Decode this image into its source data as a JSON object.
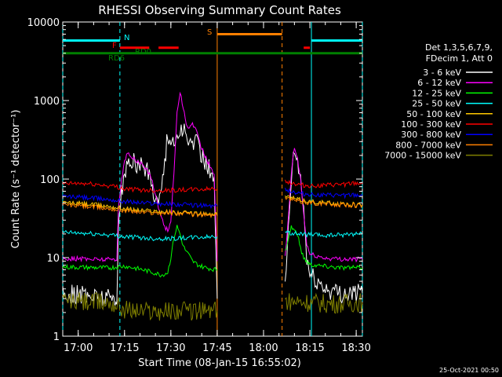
{
  "chart_data": {
    "type": "line",
    "title": "RHESSI Observing Summary Count Rates",
    "xlabel": "Start Time (08-Jan-15 16:55:02)",
    "ylabel": "Count Rate (s⁻¹ detector⁻¹)",
    "y_log": true,
    "ylim": [
      1,
      10000
    ],
    "xlim_minutes": [
      0,
      97
    ],
    "x_ticks": [
      {
        "label": "17:00",
        "min": 5
      },
      {
        "label": "17:15",
        "min": 20
      },
      {
        "label": "17:30",
        "min": 35
      },
      {
        "label": "17:45",
        "min": 50
      },
      {
        "label": "18:00",
        "min": 65
      },
      {
        "label": "18:15",
        "min": 80
      },
      {
        "label": "18:30",
        "min": 95
      }
    ],
    "y_ticks": [
      {
        "label": "1",
        "v": 1
      },
      {
        "label": "10",
        "v": 10
      },
      {
        "label": "100",
        "v": 100
      },
      {
        "label": "1000",
        "v": 1000
      },
      {
        "label": "10000",
        "v": 10000
      }
    ],
    "legend_header": [
      "Det 1,3,5,6,7,9,",
      "FDecim 1, Att 0"
    ],
    "legend_position": "right",
    "timestamp": "25-Oct-2021 00:50",
    "gaps_minutes": [
      [
        50,
        72
      ]
    ],
    "series": [
      {
        "name": "3 - 6 keV",
        "color": "#ffffff",
        "points": [
          [
            0,
            3.5
          ],
          [
            8,
            3.3
          ],
          [
            15,
            3.1
          ],
          [
            17.5,
            3.2
          ],
          [
            18,
            20
          ],
          [
            19,
            70
          ],
          [
            20,
            110
          ],
          [
            21,
            145
          ],
          [
            22,
            175
          ],
          [
            23,
            165
          ],
          [
            24,
            150
          ],
          [
            25,
            155
          ],
          [
            26,
            140
          ],
          [
            27,
            135
          ],
          [
            28,
            110
          ],
          [
            29,
            80
          ],
          [
            30,
            60
          ],
          [
            31,
            50
          ],
          [
            32,
            80
          ],
          [
            33,
            180
          ],
          [
            34,
            350
          ],
          [
            35,
            330
          ],
          [
            36,
            270
          ],
          [
            37,
            330
          ],
          [
            38,
            440
          ],
          [
            39,
            420
          ],
          [
            40,
            320
          ],
          [
            41,
            280
          ],
          [
            42,
            300
          ],
          [
            43,
            310
          ],
          [
            44,
            250
          ],
          [
            45,
            200
          ],
          [
            46,
            170
          ],
          [
            47,
            150
          ],
          [
            48,
            120
          ],
          [
            49,
            90
          ],
          [
            50,
            3
          ]
        ],
        "points2": [
          [
            72,
            4
          ],
          [
            73,
            20
          ],
          [
            74,
            100
          ],
          [
            75,
            220
          ],
          [
            76,
            160
          ],
          [
            77,
            100
          ],
          [
            78,
            40
          ],
          [
            79,
            10
          ],
          [
            80,
            6
          ],
          [
            85,
            4
          ],
          [
            90,
            3.5
          ],
          [
            97,
            3.5
          ]
        ]
      },
      {
        "name": "6 - 12 keV",
        "color": "#ff00ff",
        "points": [
          [
            0,
            9.8
          ],
          [
            8,
            9.6
          ],
          [
            15,
            9.5
          ],
          [
            17.5,
            9.7
          ],
          [
            18,
            40
          ],
          [
            19,
            95
          ],
          [
            20,
            170
          ],
          [
            21,
            210
          ],
          [
            22,
            200
          ],
          [
            23,
            180
          ],
          [
            24,
            170
          ],
          [
            25,
            160
          ],
          [
            26,
            150
          ],
          [
            27,
            135
          ],
          [
            28,
            115
          ],
          [
            29,
            95
          ],
          [
            30,
            65
          ],
          [
            31,
            42
          ],
          [
            32,
            33
          ],
          [
            33,
            25
          ],
          [
            34,
            22
          ],
          [
            35,
            30
          ],
          [
            36,
            120
          ],
          [
            37,
            700
          ],
          [
            38,
            1300
          ],
          [
            39,
            800
          ],
          [
            40,
            480
          ],
          [
            41,
            440
          ],
          [
            42,
            520
          ],
          [
            43,
            430
          ],
          [
            44,
            320
          ],
          [
            45,
            250
          ],
          [
            46,
            200
          ],
          [
            47,
            165
          ],
          [
            48,
            140
          ],
          [
            49,
            110
          ],
          [
            50,
            9
          ]
        ],
        "points2": [
          [
            72,
            10
          ],
          [
            73,
            30
          ],
          [
            74,
            120
          ],
          [
            75,
            250
          ],
          [
            76,
            180
          ],
          [
            77,
            100
          ],
          [
            78,
            35
          ],
          [
            79,
            15
          ],
          [
            80,
            11
          ],
          [
            85,
            9.8
          ],
          [
            90,
            9.6
          ],
          [
            97,
            9.5
          ]
        ]
      },
      {
        "name": "12 - 25 keV",
        "color": "#00ff00",
        "points": [
          [
            0,
            7.6
          ],
          [
            8,
            7.5
          ],
          [
            15,
            7.4
          ],
          [
            17.5,
            7.6
          ],
          [
            18,
            7.6
          ],
          [
            20,
            7.8
          ],
          [
            23,
            7.4
          ],
          [
            26,
            7
          ],
          [
            29,
            6.5
          ],
          [
            32,
            6
          ],
          [
            34,
            6.5
          ],
          [
            35,
            10
          ],
          [
            36,
            18
          ],
          [
            37,
            25
          ],
          [
            38,
            20
          ],
          [
            39,
            14
          ],
          [
            40,
            12
          ],
          [
            41,
            10.5
          ],
          [
            42,
            9
          ],
          [
            44,
            8
          ],
          [
            46,
            7.5
          ],
          [
            48,
            7.2
          ],
          [
            50,
            7
          ]
        ],
        "points2": [
          [
            72,
            12
          ],
          [
            74,
            25
          ],
          [
            76,
            20
          ],
          [
            77,
            13
          ],
          [
            78,
            10
          ],
          [
            80,
            8.2
          ],
          [
            85,
            7.8
          ],
          [
            90,
            7.5
          ],
          [
            97,
            7.4
          ]
        ]
      },
      {
        "name": "25 - 50 keV",
        "color": "#00ffff",
        "points": [
          [
            0,
            21
          ],
          [
            5,
            20.5
          ],
          [
            10,
            20
          ],
          [
            15,
            19.5
          ],
          [
            17.5,
            19
          ],
          [
            20,
            18.5
          ],
          [
            25,
            18
          ],
          [
            30,
            17.5
          ],
          [
            35,
            17.5
          ],
          [
            40,
            17.8
          ],
          [
            45,
            18.2
          ],
          [
            50,
            18.5
          ]
        ],
        "points2": [
          [
            72,
            21
          ],
          [
            76,
            20
          ],
          [
            80,
            19.5
          ],
          [
            85,
            19
          ],
          [
            90,
            19.5
          ],
          [
            97,
            20.5
          ]
        ]
      },
      {
        "name": "50 - 100 keV",
        "color": "#ffc800",
        "points": [
          [
            0,
            50
          ],
          [
            5,
            49
          ],
          [
            10,
            47
          ],
          [
            15,
            45
          ],
          [
            20,
            42
          ],
          [
            25,
            40
          ],
          [
            30,
            39
          ],
          [
            35,
            38
          ],
          [
            40,
            37
          ],
          [
            45,
            36
          ],
          [
            50,
            35
          ]
        ],
        "points2": [
          [
            72,
            60
          ],
          [
            74,
            58
          ],
          [
            76,
            55
          ],
          [
            80,
            52
          ],
          [
            85,
            50
          ],
          [
            90,
            48
          ],
          [
            97,
            47
          ]
        ]
      },
      {
        "name": "100 - 300 keV",
        "color": "#ff0000",
        "points": [
          [
            0,
            87
          ],
          [
            5,
            88
          ],
          [
            10,
            86
          ],
          [
            15,
            82
          ],
          [
            17.5,
            80
          ],
          [
            20,
            75
          ],
          [
            25,
            73
          ],
          [
            30,
            72
          ],
          [
            35,
            72
          ],
          [
            40,
            73
          ],
          [
            45,
            74
          ],
          [
            50,
            76
          ]
        ],
        "points2": [
          [
            72,
            95
          ],
          [
            74,
            90
          ],
          [
            76,
            85
          ],
          [
            80,
            82
          ],
          [
            85,
            83
          ],
          [
            90,
            85
          ],
          [
            95,
            88
          ],
          [
            97,
            88
          ]
        ]
      },
      {
        "name": "300 - 800 keV",
        "color": "#0000ff",
        "points": [
          [
            0,
            60
          ],
          [
            5,
            59
          ],
          [
            10,
            57
          ],
          [
            15,
            55
          ],
          [
            20,
            52
          ],
          [
            25,
            50
          ],
          [
            30,
            49
          ],
          [
            35,
            48
          ],
          [
            40,
            47
          ],
          [
            45,
            46
          ],
          [
            50,
            45
          ]
        ],
        "points2": [
          [
            72,
            75
          ],
          [
            74,
            70
          ],
          [
            76,
            66
          ],
          [
            80,
            64
          ],
          [
            85,
            62
          ],
          [
            90,
            62
          ],
          [
            95,
            62
          ],
          [
            97,
            62
          ]
        ]
      },
      {
        "name": "800 - 7000 keV",
        "color": "#ff7f00",
        "points": [
          [
            0,
            47
          ],
          [
            5,
            46
          ],
          [
            10,
            44
          ],
          [
            15,
            42
          ],
          [
            20,
            40
          ],
          [
            25,
            38
          ],
          [
            30,
            37
          ],
          [
            35,
            37
          ],
          [
            40,
            36
          ],
          [
            45,
            35
          ],
          [
            50,
            34
          ]
        ],
        "points2": [
          [
            72,
            57
          ],
          [
            74,
            55
          ],
          [
            76,
            52
          ],
          [
            80,
            50
          ],
          [
            85,
            48
          ],
          [
            90,
            47
          ],
          [
            97,
            46
          ]
        ]
      },
      {
        "name": "7000 - 15000 keV",
        "color": "#7f7f00",
        "points": [
          [
            0,
            2.8
          ],
          [
            10,
            2.7
          ],
          [
            15,
            2.7
          ],
          [
            17.5,
            2.5
          ],
          [
            20,
            2.2
          ],
          [
            25,
            2.1
          ],
          [
            30,
            2.1
          ],
          [
            35,
            2.1
          ],
          [
            40,
            2.1
          ],
          [
            45,
            2.1
          ],
          [
            50,
            2.1
          ]
        ],
        "points2": [
          [
            72,
            2.8
          ],
          [
            80,
            2.7
          ],
          [
            85,
            2.6
          ],
          [
            90,
            2.6
          ],
          [
            97,
            2.7
          ]
        ]
      }
    ],
    "annotations": [
      {
        "label": "N",
        "color": "#00ffff",
        "segments": [
          [
            0,
            18.5
          ],
          [
            80.5,
            97
          ]
        ],
        "y": 5800
      },
      {
        "label": "F",
        "color": "#ff0000",
        "segments": [
          [
            18.5,
            28
          ],
          [
            31,
            37.5
          ],
          [
            78,
            80
          ]
        ],
        "y": 4700
      },
      {
        "label": "RD0",
        "color": "#008000",
        "segments": [
          [
            0,
            97
          ]
        ],
        "y": 4000
      },
      {
        "label": "RD6",
        "color": "#008000",
        "segments": [],
        "y": 3300
      },
      {
        "label": "S",
        "color": "#ff7f00",
        "segments": [
          [
            50,
            71
          ]
        ],
        "y": 7000
      }
    ],
    "vlines": [
      {
        "min": 0,
        "color": "#00ffff",
        "style": "dash"
      },
      {
        "min": 18.5,
        "color": "#00ffff",
        "style": "dash"
      },
      {
        "min": 97,
        "color": "#00ffff",
        "style": "dash"
      },
      {
        "min": 80.5,
        "color": "#00ffff",
        "style": "solid"
      },
      {
        "min": 50,
        "color": "#ff7f00",
        "style": "solid"
      },
      {
        "min": 71,
        "color": "#ff7f00",
        "style": "dash"
      }
    ]
  }
}
